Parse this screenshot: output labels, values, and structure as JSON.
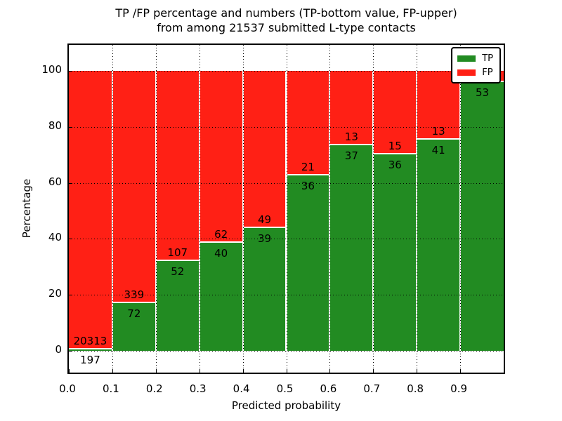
{
  "figure": {
    "title_line1": "TP /FP percentage and numbers (TP-bottom value, FP-upper)",
    "title_line2": "from among 21537 submitted L-type contacts"
  },
  "chart_data": {
    "type": "bar",
    "stacked": true,
    "title": "TP /FP percentage and numbers (TP-bottom value, FP-upper) from among 21537 submitted L-type contacts",
    "total_submitted_contacts": 21537,
    "xlabel": "Predicted probability",
    "ylabel": "Percentage",
    "x_tick_labels": [
      "0.0",
      "0.1",
      "0.2",
      "0.3",
      "0.4",
      "0.5",
      "0.6",
      "0.7",
      "0.8",
      "0.9"
    ],
    "y_tick_values": [
      0,
      20,
      40,
      60,
      80,
      100
    ],
    "ylim_visible": [
      -9,
      109
    ],
    "grid": "dotted",
    "categories": [
      "0.0-0.1",
      "0.1-0.2",
      "0.2-0.3",
      "0.3-0.4",
      "0.4-0.5",
      "0.5-0.6",
      "0.6-0.7",
      "0.7-0.8",
      "0.8-0.9",
      "0.9-1.0"
    ],
    "series": [
      {
        "name": "TP",
        "color": "#228B22",
        "counts": [
          197,
          72,
          52,
          40,
          39,
          36,
          37,
          36,
          41,
          53
        ],
        "pct": [
          1.0,
          17.5,
          32.7,
          39.2,
          44.3,
          63.2,
          74.0,
          70.6,
          75.9,
          96.4
        ]
      },
      {
        "name": "FP",
        "color": "#FF2015",
        "counts": [
          20313,
          339,
          107,
          62,
          49,
          21,
          13,
          15,
          13,
          null
        ],
        "pct": [
          99.0,
          82.5,
          67.3,
          60.8,
          55.7,
          36.8,
          26.0,
          29.4,
          24.1,
          3.6
        ]
      }
    ],
    "legend": {
      "position": "upper right",
      "entries": [
        {
          "label": "TP",
          "color": "#228B22"
        },
        {
          "label": "FP",
          "color": "#FF2015"
        }
      ]
    }
  }
}
